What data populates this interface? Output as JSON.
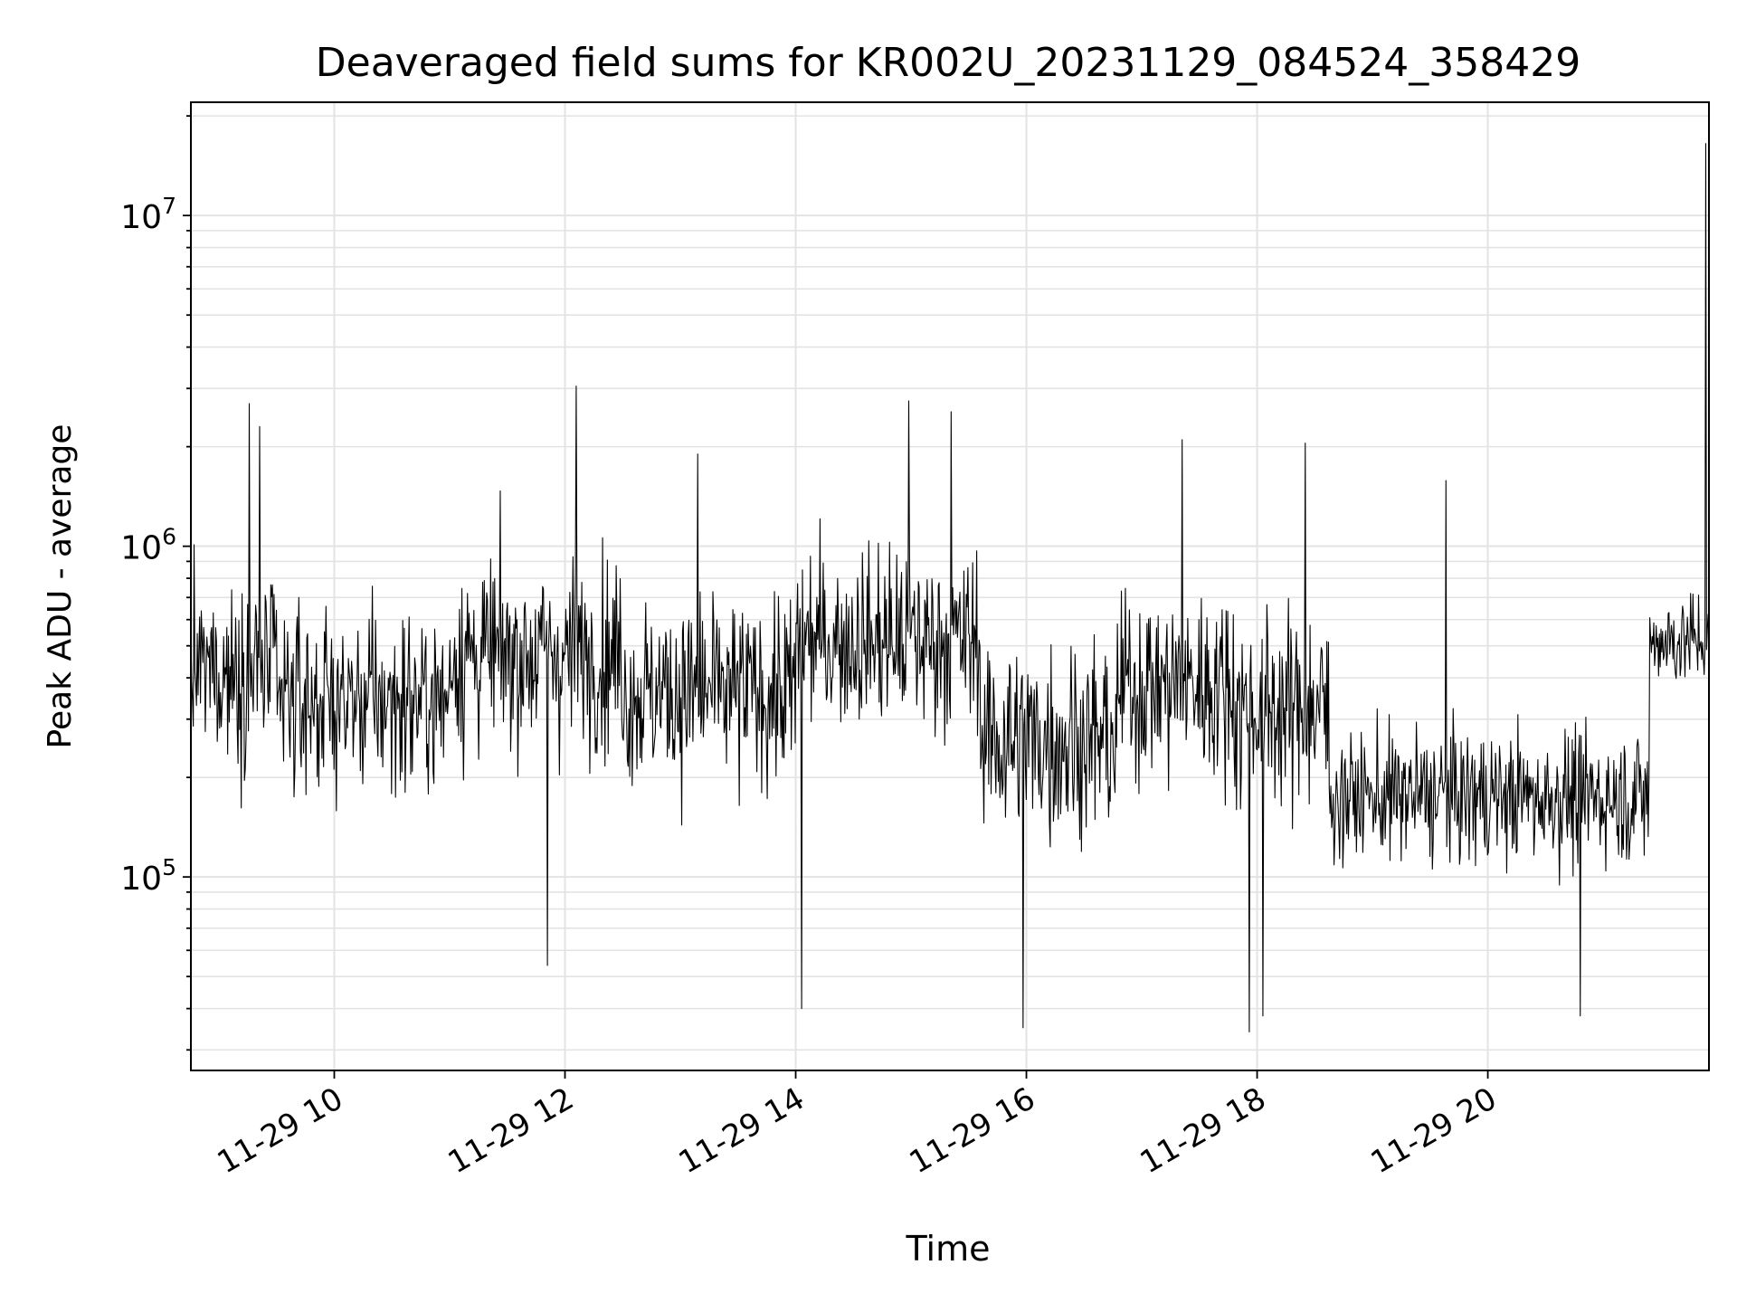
{
  "chart_data": {
    "type": "line",
    "title": "Deaveraged field sums for KR002U_20231129_084524_358429",
    "xlabel": "Time",
    "ylabel": "Peak ADU - average",
    "x_range": [
      "2023-11-29T08:45:24",
      "2023-11-29T21:55:00"
    ],
    "xlim_hours": [
      8.757,
      21.917
    ],
    "ylim": [
      26000,
      22000000
    ],
    "y_scale": "log",
    "grid": true,
    "line_color": "#000000",
    "x_ticks": [
      {
        "hour": 10,
        "label": "11-29 10"
      },
      {
        "hour": 12,
        "label": "11-29 12"
      },
      {
        "hour": 14,
        "label": "11-29 14"
      },
      {
        "hour": 16,
        "label": "11-29 16"
      },
      {
        "hour": 18,
        "label": "11-29 18"
      },
      {
        "hour": 20,
        "label": "11-29 20"
      }
    ],
    "y_ticks": [
      {
        "value": 100000,
        "base": "10",
        "exp": "5"
      },
      {
        "value": 1000000,
        "base": "10",
        "exp": "6"
      },
      {
        "value": 10000000,
        "base": "10",
        "exp": "7"
      }
    ],
    "series": [
      {
        "sampling": "noisy time series, approx. 1900 samples; segments described by local median level and spread",
        "segments": [
          {
            "start_hour": 8.757,
            "end_hour": 9.5,
            "median": 420000,
            "spread": 2.2
          },
          {
            "start_hour": 9.5,
            "end_hour": 11.0,
            "median": 340000,
            "spread": 2.2
          },
          {
            "start_hour": 11.0,
            "end_hour": 12.5,
            "median": 470000,
            "spread": 2.3
          },
          {
            "start_hour": 12.5,
            "end_hour": 14.0,
            "median": 360000,
            "spread": 2.3
          },
          {
            "start_hour": 14.0,
            "end_hour": 15.6,
            "median": 520000,
            "spread": 2.2
          },
          {
            "start_hour": 15.6,
            "end_hour": 16.8,
            "median": 260000,
            "spread": 2.4
          },
          {
            "start_hour": 16.8,
            "end_hour": 17.8,
            "median": 380000,
            "spread": 2.3
          },
          {
            "start_hour": 17.8,
            "end_hour": 18.62,
            "median": 320000,
            "spread": 2.3
          },
          {
            "start_hour": 18.62,
            "end_hour": 21.4,
            "median": 175000,
            "spread": 1.8
          },
          {
            "start_hour": 21.4,
            "end_hour": 21.917,
            "median": 520000,
            "spread": 1.5
          }
        ],
        "spikes": [
          {
            "hour": 9.26,
            "value": 2700000
          },
          {
            "hour": 9.35,
            "value": 2300000
          },
          {
            "hour": 12.1,
            "value": 3050000
          },
          {
            "hour": 13.15,
            "value": 1900000
          },
          {
            "hour": 14.98,
            "value": 2750000
          },
          {
            "hour": 15.35,
            "value": 2550000
          },
          {
            "hour": 17.35,
            "value": 2100000
          },
          {
            "hour": 18.42,
            "value": 2050000
          },
          {
            "hour": 19.64,
            "value": 1580000
          },
          {
            "hour": 21.89,
            "value": 16500000
          }
        ],
        "dips": [
          {
            "hour": 11.85,
            "value": 54000
          },
          {
            "hour": 14.05,
            "value": 40000
          },
          {
            "hour": 15.97,
            "value": 35000
          },
          {
            "hour": 17.93,
            "value": 34000
          },
          {
            "hour": 18.05,
            "value": 38000
          },
          {
            "hour": 20.8,
            "value": 38000
          }
        ]
      }
    ]
  }
}
